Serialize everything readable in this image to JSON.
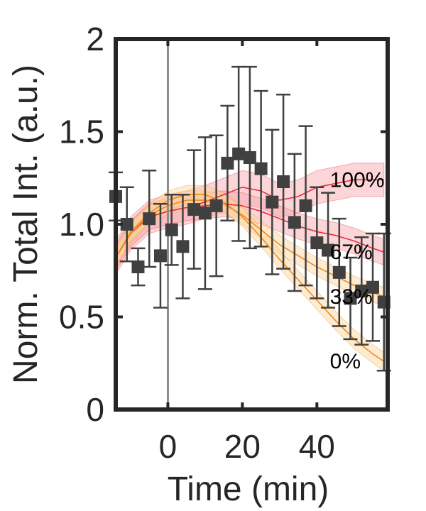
{
  "chart_data": {
    "type": "line",
    "title": "",
    "xlabel": "Time (min)",
    "ylabel": "Norm. Total Int. (a.u.)",
    "xlim": [
      -14,
      59
    ],
    "ylim": [
      0,
      2
    ],
    "xticks": [
      0,
      20,
      40
    ],
    "yticks": [
      0,
      0.5,
      1.0,
      1.5,
      2
    ],
    "xtick_labels": [
      "0",
      "20",
      "40"
    ],
    "ytick_labels": [
      "0",
      "0.5",
      "1.0",
      "1.5",
      "2"
    ],
    "grid": false,
    "vline_x": 0,
    "colors": {
      "axis": "#262626",
      "markers": "#404040",
      "vline": "#8c8c8c",
      "red_line": "#e8303a",
      "red_band": "#f7a1a8",
      "orange_line": "#f28a1c",
      "orange_band": "#fbd49a"
    },
    "measured": {
      "x": [
        -14,
        -11,
        -8,
        -5,
        -2,
        1,
        4,
        7,
        10,
        13,
        16,
        19,
        22,
        25,
        28,
        31,
        34,
        37,
        40,
        43,
        46,
        49,
        52,
        55,
        58
      ],
      "y": [
        1.15,
        1.0,
        0.77,
        1.03,
        0.83,
        0.97,
        0.88,
        1.08,
        1.06,
        1.1,
        1.33,
        1.38,
        1.36,
        1.3,
        1.12,
        1.23,
        1.01,
        1.1,
        0.9,
        0.86,
        0.74,
        0.6,
        0.64,
        0.66,
        0.58
      ],
      "err": [
        0.13,
        0.2,
        0.1,
        0.26,
        0.28,
        0.19,
        0.28,
        0.32,
        0.41,
        0.38,
        0.31,
        0.47,
        0.49,
        0.42,
        0.39,
        0.47,
        0.37,
        0.43,
        0.3,
        0.31,
        0.29,
        0.22,
        0.29,
        0.29,
        0.37
      ]
    },
    "models": [
      {
        "label": "100%",
        "color_key": "red",
        "x": [
          -14,
          -10,
          -5,
          0,
          5,
          10,
          15,
          20,
          25,
          30,
          35,
          40,
          45,
          50,
          55,
          58
        ],
        "y": [
          0.82,
          0.95,
          1.04,
          1.07,
          1.09,
          1.12,
          1.16,
          1.2,
          1.18,
          1.13,
          1.15,
          1.2,
          1.22,
          1.24,
          1.24,
          1.24
        ],
        "band": 0.09
      },
      {
        "label": "67%",
        "color_key": "red",
        "x": [
          -14,
          -10,
          -5,
          0,
          5,
          10,
          15,
          20,
          25,
          30,
          35,
          40,
          45,
          50,
          55,
          58
        ],
        "y": [
          0.82,
          0.95,
          1.04,
          1.07,
          1.09,
          1.1,
          1.11,
          1.1,
          1.07,
          1.03,
          0.99,
          0.96,
          0.94,
          0.91,
          0.87,
          0.85
        ],
        "band": 0.07
      },
      {
        "label": "33%",
        "color_key": "orange",
        "x": [
          -14,
          -10,
          -5,
          0,
          5,
          10,
          15,
          20,
          25,
          30,
          35,
          40,
          45,
          50,
          55,
          58
        ],
        "y": [
          0.82,
          0.95,
          1.05,
          1.1,
          1.13,
          1.13,
          1.11,
          1.05,
          0.97,
          0.89,
          0.83,
          0.77,
          0.72,
          0.67,
          0.63,
          0.61
        ],
        "band": 0.05
      },
      {
        "label": "0%",
        "color_key": "orange",
        "x": [
          -14,
          -10,
          -5,
          0,
          5,
          10,
          15,
          20,
          25,
          30,
          35,
          40,
          45,
          50,
          55,
          58
        ],
        "y": [
          0.82,
          0.96,
          1.06,
          1.13,
          1.16,
          1.16,
          1.12,
          1.04,
          0.93,
          0.81,
          0.7,
          0.59,
          0.48,
          0.38,
          0.3,
          0.26
        ],
        "band": 0.05
      }
    ]
  }
}
